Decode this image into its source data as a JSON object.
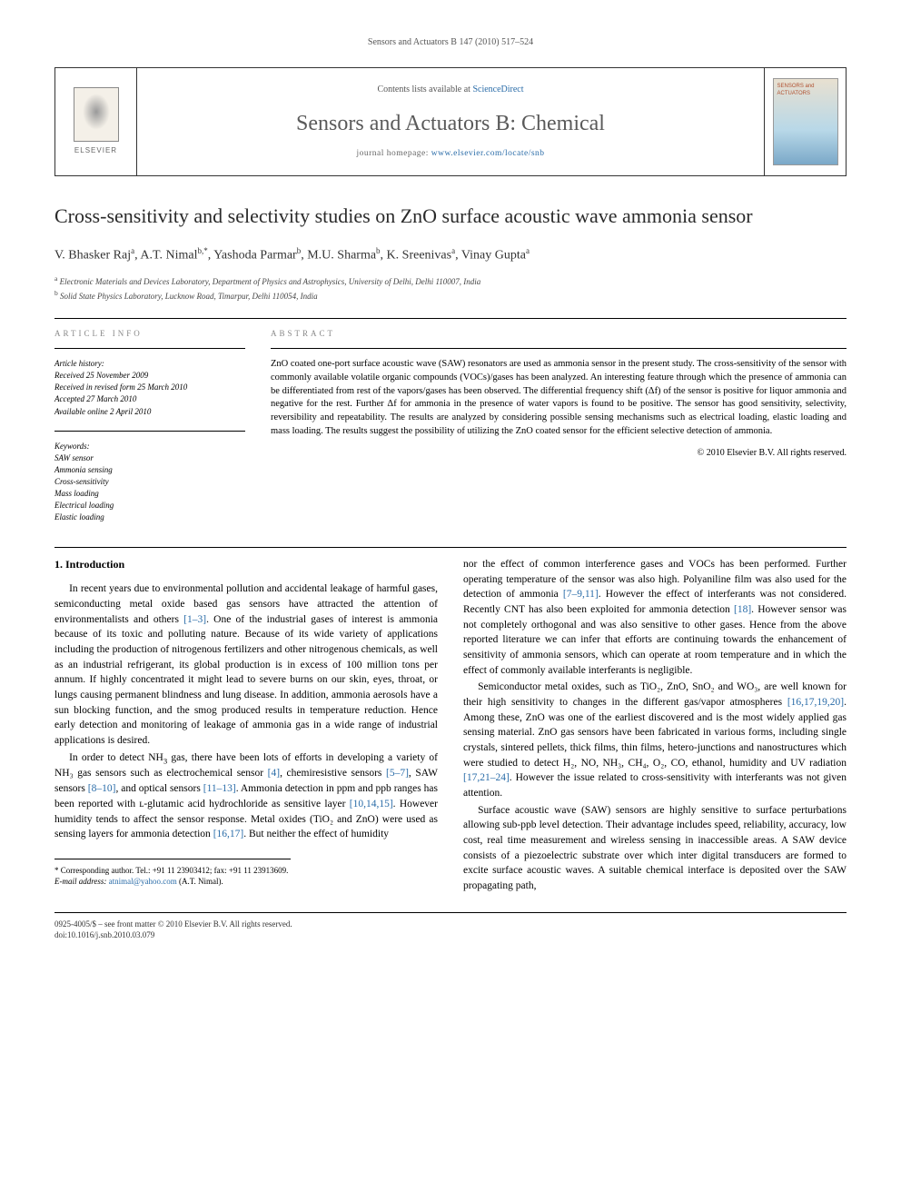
{
  "running_header": "Sensors and Actuators B 147 (2010) 517–524",
  "header": {
    "publisher_label": "ELSEVIER",
    "contents_prefix": "Contents lists available at ",
    "contents_link": "ScienceDirect",
    "journal_title": "Sensors and Actuators B: Chemical",
    "homepage_prefix": "journal homepage: ",
    "homepage_url": "www.elsevier.com/locate/snb",
    "cover_label": "SENSORS and ACTUATORS"
  },
  "article": {
    "title": "Cross-sensitivity and selectivity studies on ZnO surface acoustic wave ammonia sensor",
    "authors_html": "V. Bhasker Raj<sup>a</sup>, A.T. Nimal<sup>b,*</sup>, Yashoda Parmar<sup>b</sup>, M.U. Sharma<sup>b</sup>, K. Sreenivas<sup>a</sup>, Vinay Gupta<sup>a</sup>",
    "affiliations": {
      "a": "Electronic Materials and Devices Laboratory, Department of Physics and Astrophysics, University of Delhi, Delhi 110007, India",
      "b": "Solid State Physics Laboratory, Lucknow Road, Timarpur, Delhi 110054, India"
    }
  },
  "info": {
    "section_label": "ARTICLE INFO",
    "history_header": "Article history:",
    "history": [
      "Received 25 November 2009",
      "Received in revised form 25 March 2010",
      "Accepted 27 March 2010",
      "Available online 2 April 2010"
    ],
    "keywords_header": "Keywords:",
    "keywords": [
      "SAW sensor",
      "Ammonia sensing",
      "Cross-sensitivity",
      "Mass loading",
      "Electrical loading",
      "Elastic loading"
    ]
  },
  "abstract": {
    "section_label": "ABSTRACT",
    "text": "ZnO coated one-port surface acoustic wave (SAW) resonators are used as ammonia sensor in the present study. The cross-sensitivity of the sensor with commonly available volatile organic compounds (VOCs)/gases has been analyzed. An interesting feature through which the presence of ammonia can be differentiated from rest of the vapors/gases has been observed. The differential frequency shift (Δf) of the sensor is positive for liquor ammonia and negative for the rest. Further Δf for ammonia in the presence of water vapors is found to be positive. The sensor has good sensitivity, selectivity, reversibility and repeatability. The results are analyzed by considering possible sensing mechanisms such as electrical loading, elastic loading and mass loading. The results suggest the possibility of utilizing the ZnO coated sensor for the efficient selective detection of ammonia.",
    "copyright": "© 2010 Elsevier B.V. All rights reserved."
  },
  "body": {
    "section_heading": "1. Introduction",
    "p1": "In recent years due to environmental pollution and accidental leakage of harmful gases, semiconducting metal oxide based gas sensors have attracted the attention of environmentalists and others [1–3]. One of the industrial gases of interest is ammonia because of its toxic and polluting nature. Because of its wide variety of applications including the production of nitrogenous fertilizers and other nitrogenous chemicals, as well as an industrial refrigerant, its global production is in excess of 100 million tons per annum. If highly concentrated it might lead to severe burns on our skin, eyes, throat, or lungs causing permanent blindness and lung disease. In addition, ammonia aerosols have a sun blocking function, and the smog produced results in temperature reduction. Hence early detection and monitoring of leakage of ammonia gas in a wide range of industrial applications is desired.",
    "p2_pre": "In order to detect NH",
    "p2_post": " gas, there have been lots of efforts in developing a variety of NH₃ gas sensors such as electrochemical sensor [4], chemiresistive sensors [5–7], SAW sensors [8–10], and optical sensors [11–13]. Ammonia detection in ppm and ppb ranges has been reported with ʟ-glutamic acid hydrochloride as sensitive layer [10,14,15]. However humidity tends to affect the sensor response. Metal oxides (TiO₂ and ZnO) were used as sensing layers for ammonia detection [16,17]. But neither the effect of humidity",
    "p3": "nor the effect of common interference gases and VOCs has been performed. Further operating temperature of the sensor was also high. Polyaniline film was also used for the detection of ammonia [7–9,11]. However the effect of interferants was not considered. Recently CNT has also been exploited for ammonia detection [18]. However sensor was not completely orthogonal and was also sensitive to other gases. Hence from the above reported literature we can infer that efforts are continuing towards the enhancement of sensitivity of ammonia sensors, which can operate at room temperature and in which the effect of commonly available interferants is negligible.",
    "p4": "Semiconductor metal oxides, such as TiO₂, ZnO, SnO₂ and WO₃, are well known for their high sensitivity to changes in the different gas/vapor atmospheres [16,17,19,20]. Among these, ZnO was one of the earliest discovered and is the most widely applied gas sensing material. ZnO gas sensors have been fabricated in various forms, including single crystals, sintered pellets, thick films, thin films, hetero-junctions and nanostructures which were studied to detect H₂, NO, NH₃, CH₄, O₂, CO, ethanol, humidity and UV radiation [17,21–24]. However the issue related to cross-sensitivity with interferants was not given attention.",
    "p5": "Surface acoustic wave (SAW) sensors are highly sensitive to surface perturbations allowing sub-ppb level detection. Their advantage includes speed, reliability, accuracy, low cost, real time measurement and wireless sensing in inaccessible areas. A SAW device consists of a piezoelectric substrate over which inter digital transducers are formed to excite surface acoustic waves. A suitable chemical interface is deposited over the SAW propagating path,"
  },
  "corr": {
    "line1": "* Corresponding author. Tel.: +91 11 23903412; fax: +91 11 23913609.",
    "email_label": "E-mail address: ",
    "email": "atnimal@yahoo.com",
    "email_suffix": " (A.T. Nimal)."
  },
  "footer": {
    "line1": "0925-4005/$ – see front matter © 2010 Elsevier B.V. All rights reserved.",
    "doi": "doi:10.1016/j.snb.2010.03.079"
  },
  "colors": {
    "link": "#2a6ca8",
    "text": "#000000",
    "muted": "#555555"
  }
}
